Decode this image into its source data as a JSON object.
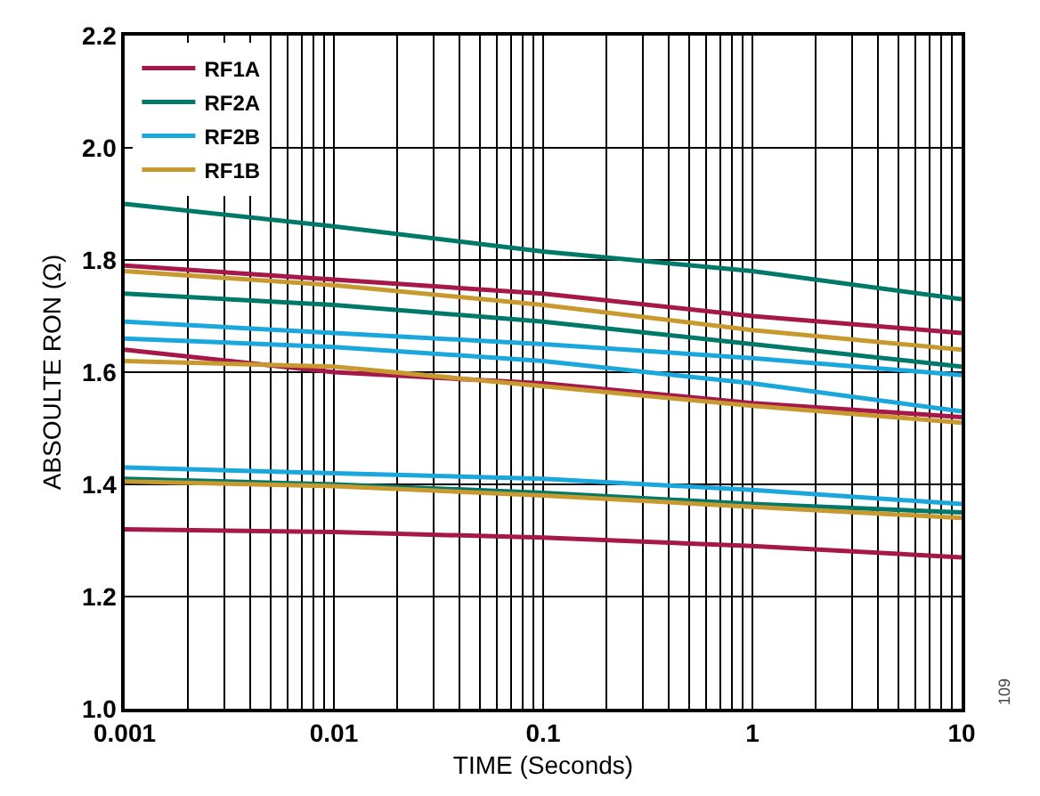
{
  "chart_data": {
    "type": "line",
    "xlabel": "TIME (Seconds)",
    "ylabel": "ABSOULTE RON (Ω)",
    "log": "x",
    "x": [
      0.001,
      0.01,
      0.1,
      1,
      10
    ],
    "series": [
      {
        "name": "RF1A",
        "color": "#a6174a",
        "values": [
          1.79,
          1.765,
          1.74,
          1.7,
          1.67
        ]
      },
      {
        "color": "#a6174a",
        "values": [
          1.64,
          1.6,
          1.58,
          1.545,
          1.52
        ]
      },
      {
        "color": "#a6174a",
        "values": [
          1.32,
          1.315,
          1.305,
          1.29,
          1.27
        ]
      },
      {
        "name": "RF2A",
        "color": "#00796b",
        "values": [
          1.9,
          1.86,
          1.815,
          1.78,
          1.73
        ]
      },
      {
        "color": "#00796b",
        "values": [
          1.74,
          1.72,
          1.69,
          1.65,
          1.61
        ]
      },
      {
        "color": "#00796b",
        "values": [
          1.41,
          1.4,
          1.385,
          1.365,
          1.35
        ]
      },
      {
        "name": "RF2B",
        "color": "#1aa7dc",
        "values": [
          1.69,
          1.67,
          1.65,
          1.625,
          1.595
        ]
      },
      {
        "color": "#1aa7dc",
        "values": [
          1.66,
          1.645,
          1.62,
          1.58,
          1.53
        ]
      },
      {
        "color": "#1aa7dc",
        "values": [
          1.43,
          1.42,
          1.41,
          1.39,
          1.365
        ]
      },
      {
        "name": "RF1B",
        "color": "#c8992e",
        "values": [
          1.78,
          1.755,
          1.72,
          1.675,
          1.64
        ]
      },
      {
        "color": "#c8992e",
        "values": [
          1.62,
          1.61,
          1.575,
          1.54,
          1.51
        ]
      },
      {
        "color": "#c8992e",
        "values": [
          1.405,
          1.397,
          1.38,
          1.36,
          1.34
        ]
      }
    ],
    "xlim": [
      0.001,
      10
    ],
    "xticks": [
      0.001,
      0.01,
      0.1,
      1,
      10
    ],
    "ylim": [
      1.0,
      2.2
    ],
    "yticks": [
      {
        "value": 1.0,
        "label": "1.0"
      },
      1.2,
      1.4,
      1.6,
      1.8,
      {
        "value": 2.0,
        "label": "2.0"
      },
      2.2
    ],
    "grid": true,
    "legend": "top left",
    "marker": "none",
    "line_style": "solid",
    "annotations": [
      "109"
    ]
  }
}
